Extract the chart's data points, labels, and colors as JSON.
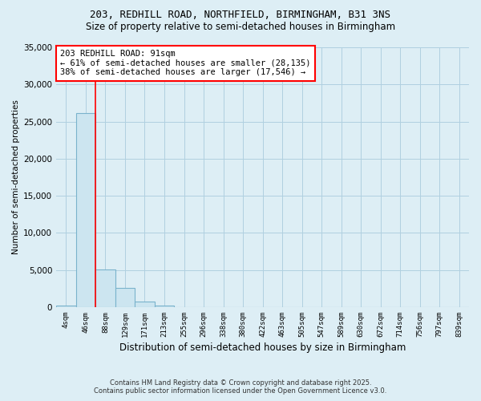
{
  "title": "203, REDHILL ROAD, NORTHFIELD, BIRMINGHAM, B31 3NS",
  "subtitle": "Size of property relative to semi-detached houses in Birmingham",
  "xlabel": "Distribution of semi-detached houses by size in Birmingham",
  "ylabel": "Number of semi-detached properties",
  "footer_line1": "Contains HM Land Registry data © Crown copyright and database right 2025.",
  "footer_line2": "Contains public sector information licensed under the Open Government Licence v3.0.",
  "bin_labels": [
    "4sqm",
    "46sqm",
    "88sqm",
    "129sqm",
    "171sqm",
    "213sqm",
    "255sqm",
    "296sqm",
    "338sqm",
    "380sqm",
    "422sqm",
    "463sqm",
    "505sqm",
    "547sqm",
    "589sqm",
    "630sqm",
    "672sqm",
    "714sqm",
    "756sqm",
    "797sqm",
    "839sqm"
  ],
  "bin_values": [
    200,
    26100,
    5100,
    2600,
    700,
    200,
    0,
    0,
    0,
    0,
    0,
    0,
    0,
    0,
    0,
    0,
    0,
    0,
    0,
    0,
    0
  ],
  "bar_color": "#cce5f0",
  "bar_edge_color": "#7ab3cc",
  "red_line_x": 2,
  "annotation_title": "203 REDHILL ROAD: 91sqm",
  "annotation_line1": "← 61% of semi-detached houses are smaller (28,135)",
  "annotation_line2": "38% of semi-detached houses are larger (17,546) →",
  "ylim": [
    0,
    35000
  ],
  "yticks": [
    0,
    5000,
    10000,
    15000,
    20000,
    25000,
    30000,
    35000
  ],
  "background_color": "#ddeef5",
  "plot_bg_color": "#ddeef5",
  "title_fontsize": 9,
  "subtitle_fontsize": 8.5,
  "annotation_fontsize": 7.5
}
